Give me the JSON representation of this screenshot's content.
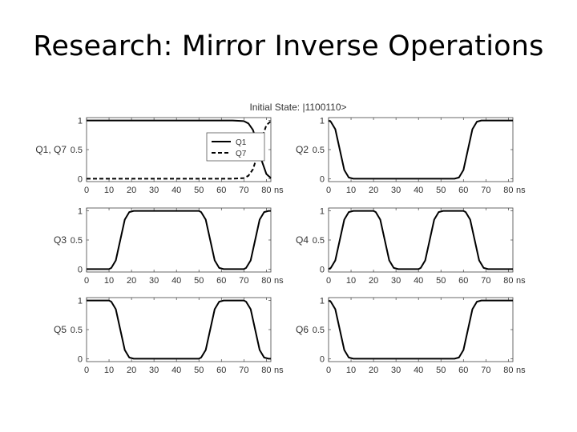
{
  "slide": {
    "title": "Research: Mirror Inverse Operations"
  },
  "figure": {
    "title": "Initial State: |1100110>"
  },
  "chart_data": [
    {
      "type": "line",
      "ylabel": "Q1, Q7",
      "xlabel": "ns",
      "x": [
        0,
        10,
        20,
        30,
        40,
        50,
        60,
        65,
        70,
        72,
        74,
        76,
        78,
        80,
        82
      ],
      "xlim": [
        0,
        82
      ],
      "ylim": [
        -0.05,
        1.05
      ],
      "xticks": [
        0,
        10,
        20,
        30,
        40,
        50,
        60,
        70,
        80
      ],
      "yticks": [
        0,
        0.5,
        1
      ],
      "ytick_labels": [
        "0",
        "0.5",
        "1"
      ],
      "legend": {
        "position": "top-right",
        "entries": [
          "Q1",
          "Q7"
        ]
      },
      "series": [
        {
          "name": "Q1",
          "style": "solid",
          "values": [
            1,
            1,
            1,
            1,
            1,
            1,
            1,
            1,
            0.99,
            0.95,
            0.84,
            0.6,
            0.3,
            0.08,
            0.01
          ]
        },
        {
          "name": "Q7",
          "style": "dashed",
          "values": [
            0,
            0,
            0,
            0,
            0,
            0,
            0,
            0,
            0.01,
            0.05,
            0.16,
            0.4,
            0.7,
            0.92,
            0.99
          ]
        }
      ]
    },
    {
      "type": "line",
      "ylabel": "Q2",
      "xlabel": "ns",
      "x": [
        0,
        1,
        3,
        5,
        7,
        9,
        11,
        20,
        30,
        40,
        50,
        56,
        58,
        60,
        62,
        64,
        66,
        68,
        70,
        80,
        82
      ],
      "xlim": [
        0,
        82
      ],
      "ylim": [
        -0.05,
        1.05
      ],
      "xticks": [
        0,
        10,
        20,
        30,
        40,
        50,
        60,
        70,
        80
      ],
      "yticks": [
        0,
        0.5,
        1
      ],
      "ytick_labels": [
        "0",
        "0.5",
        "1"
      ],
      "series": [
        {
          "values": [
            1,
            0.98,
            0.85,
            0.5,
            0.15,
            0.02,
            0,
            0,
            0,
            0,
            0,
            0,
            0.02,
            0.15,
            0.5,
            0.85,
            0.98,
            1,
            1,
            1,
            1
          ]
        }
      ]
    },
    {
      "type": "line",
      "ylabel": "Q3",
      "xlabel": "ns",
      "x": [
        0,
        10,
        11,
        13,
        15,
        17,
        19,
        21,
        30,
        40,
        50,
        51,
        53,
        55,
        57,
        59,
        61,
        70,
        71,
        73,
        75,
        77,
        79,
        81,
        82
      ],
      "xlim": [
        0,
        82
      ],
      "ylim": [
        -0.05,
        1.05
      ],
      "xticks": [
        0,
        10,
        20,
        30,
        40,
        50,
        60,
        70,
        80
      ],
      "yticks": [
        0,
        0.5,
        1
      ],
      "ytick_labels": [
        "0",
        "0.5",
        "1"
      ],
      "series": [
        {
          "values": [
            0,
            0,
            0.02,
            0.15,
            0.5,
            0.85,
            0.98,
            1,
            1,
            1,
            1,
            0.98,
            0.85,
            0.5,
            0.15,
            0.02,
            0,
            0,
            0.02,
            0.15,
            0.5,
            0.85,
            0.98,
            1,
            1
          ]
        }
      ]
    },
    {
      "type": "line",
      "ylabel": "Q4",
      "xlabel": "ns",
      "x": [
        0,
        1,
        3,
        5,
        7,
        9,
        11,
        20,
        21,
        23,
        25,
        27,
        29,
        31,
        40,
        41,
        43,
        45,
        47,
        49,
        51,
        60,
        61,
        63,
        65,
        67,
        69,
        71,
        80,
        82
      ],
      "xlim": [
        0,
        82
      ],
      "ylim": [
        -0.05,
        1.05
      ],
      "xticks": [
        0,
        10,
        20,
        30,
        40,
        50,
        60,
        70,
        80
      ],
      "yticks": [
        0,
        0.5,
        1
      ],
      "ytick_labels": [
        "0",
        "0.5",
        "1"
      ],
      "series": [
        {
          "values": [
            0,
            0.02,
            0.15,
            0.5,
            0.85,
            0.98,
            1,
            1,
            0.98,
            0.85,
            0.5,
            0.15,
            0.02,
            0,
            0,
            0.02,
            0.15,
            0.5,
            0.85,
            0.98,
            1,
            1,
            0.98,
            0.85,
            0.5,
            0.15,
            0.02,
            0,
            0,
            0
          ]
        }
      ]
    },
    {
      "type": "line",
      "ylabel": "Q5",
      "xlabel": "ns",
      "x": [
        0,
        10,
        11,
        13,
        15,
        17,
        19,
        21,
        30,
        40,
        50,
        51,
        53,
        55,
        57,
        59,
        61,
        70,
        71,
        73,
        75,
        77,
        79,
        81,
        82
      ],
      "xlim": [
        0,
        82
      ],
      "ylim": [
        -0.05,
        1.05
      ],
      "xticks": [
        0,
        10,
        20,
        30,
        40,
        50,
        60,
        70,
        80
      ],
      "yticks": [
        0,
        0.5,
        1
      ],
      "ytick_labels": [
        "0",
        "0.5",
        "1"
      ],
      "series": [
        {
          "values": [
            1,
            1,
            0.98,
            0.85,
            0.5,
            0.15,
            0.02,
            0,
            0,
            0,
            0,
            0.02,
            0.15,
            0.5,
            0.85,
            0.98,
            1,
            1,
            0.98,
            0.85,
            0.5,
            0.15,
            0.02,
            0,
            0
          ]
        }
      ]
    },
    {
      "type": "line",
      "ylabel": "Q6",
      "xlabel": "ns",
      "x": [
        0,
        1,
        3,
        5,
        7,
        9,
        11,
        20,
        30,
        40,
        50,
        56,
        58,
        60,
        62,
        64,
        66,
        68,
        70,
        80,
        82
      ],
      "xlim": [
        0,
        82
      ],
      "ylim": [
        -0.05,
        1.05
      ],
      "xticks": [
        0,
        10,
        20,
        30,
        40,
        50,
        60,
        70,
        80
      ],
      "yticks": [
        0,
        0.5,
        1
      ],
      "ytick_labels": [
        "0",
        "0.5",
        "1"
      ],
      "series": [
        {
          "values": [
            1,
            0.98,
            0.85,
            0.5,
            0.15,
            0.02,
            0,
            0,
            0,
            0,
            0,
            0,
            0.02,
            0.15,
            0.5,
            0.85,
            0.98,
            1,
            1,
            1,
            1
          ]
        }
      ]
    }
  ]
}
